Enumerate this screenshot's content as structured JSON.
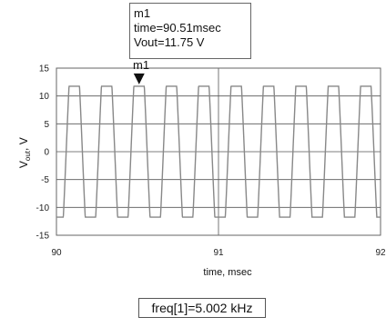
{
  "chart_data": {
    "type": "line",
    "x_unit": "msec",
    "y_unit": "V",
    "xlim": [
      90,
      92
    ],
    "ylim": [
      -15,
      15
    ],
    "x_ticks": [
      "90",
      "91",
      "92"
    ],
    "y_ticks": [
      "15",
      "10",
      "5",
      "0",
      "-5",
      "-10",
      "-15"
    ],
    "xlabel": "time, msec",
    "ylabel_main": "V",
    "ylabel_sub": "out",
    "ylabel_suffix": ", V",
    "grid": true,
    "series": [
      {
        "frequency_khz": 5.002,
        "amplitude_v": 11.75,
        "waveform": "clipped sine",
        "first_peak_ms": 90.11,
        "color": "#888888"
      }
    ],
    "marker": {
      "name": "m1",
      "time_text": "time=90.51msec",
      "value_text": "Vout=11.75 V",
      "x": 90.51,
      "y": 11.75
    },
    "annotation": "freq[1]=5.002 kHz"
  }
}
